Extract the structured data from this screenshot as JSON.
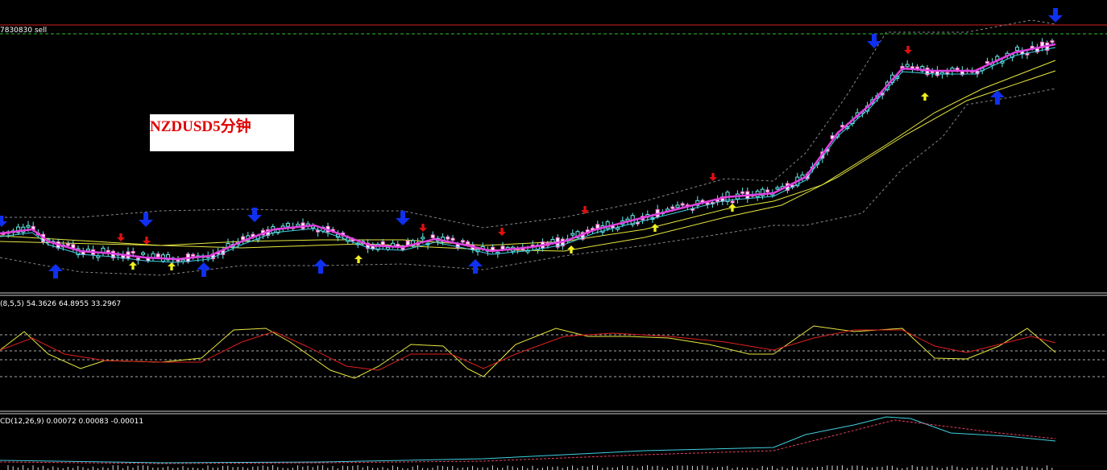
{
  "header": {
    "level_label": "7830830 sell"
  },
  "price_panel": {
    "symbol_label": "NZDUSD5分钟"
  },
  "stochastic_panel": {
    "label": "(8,5,5) 54.3626 64.8955 33.2967"
  },
  "macd_panel": {
    "label": "CD(12,26,9) 0.00072 0.00083 -0.00011"
  }
}
